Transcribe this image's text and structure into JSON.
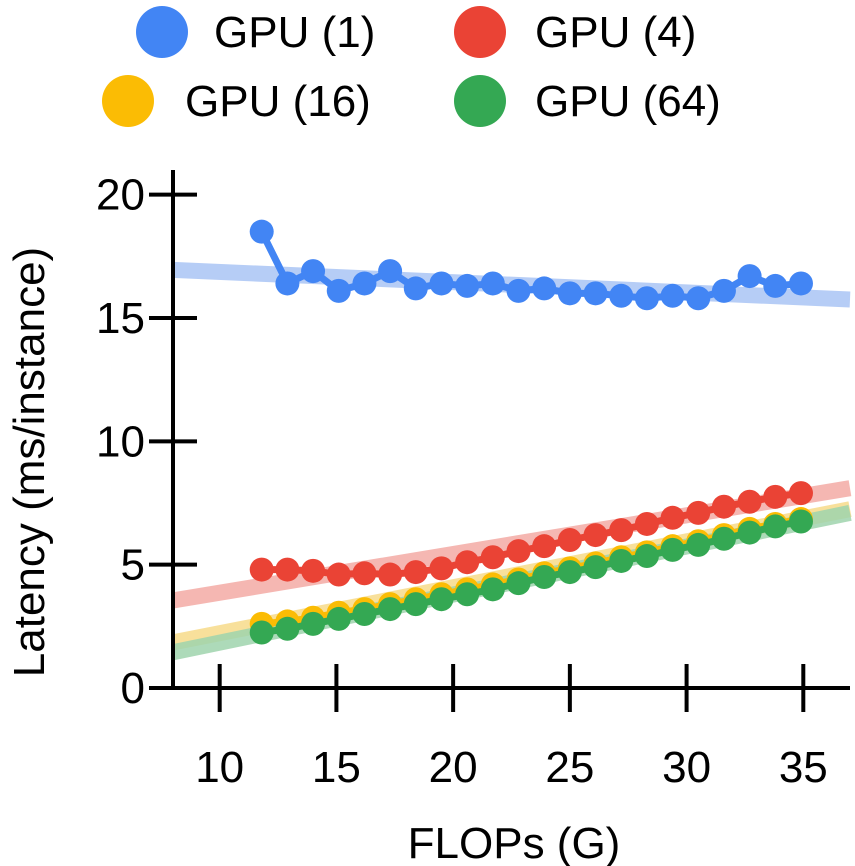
{
  "chart_data": {
    "type": "line",
    "title": "",
    "xlabel": "FLOPs (G)",
    "ylabel": "Latency (ms/instance)",
    "xlim": [
      8,
      37
    ],
    "ylim": [
      0,
      21
    ],
    "xticks": [
      10,
      15,
      20,
      25,
      30,
      35
    ],
    "yticks": [
      0,
      5,
      10,
      15,
      20
    ],
    "xtick_labels": [
      "10",
      "15",
      "20",
      "25",
      "30",
      "35"
    ],
    "ytick_labels": [
      "0",
      "5",
      "10",
      "15",
      "20"
    ],
    "grid": false,
    "legend_position": "top",
    "x": [
      11.8,
      12.9,
      14.0,
      15.1,
      16.2,
      17.3,
      18.4,
      19.5,
      20.6,
      21.7,
      22.8,
      23.9,
      25.0,
      26.1,
      27.2,
      28.3,
      29.4,
      30.5,
      31.6,
      32.7,
      33.8,
      34.9
    ],
    "series": [
      {
        "name": "GPU (1)",
        "color": "#4285F4",
        "trend_color": "#a9c4f5",
        "values": [
          18.5,
          16.4,
          16.9,
          16.1,
          16.4,
          16.9,
          16.2,
          16.4,
          16.3,
          16.4,
          16.1,
          16.2,
          16.0,
          16.0,
          15.9,
          15.8,
          15.9,
          15.8,
          16.1,
          16.7,
          16.3,
          16.4
        ],
        "trend": [
          [
            8.0,
            16.95
          ],
          [
            37.0,
            15.75
          ]
        ]
      },
      {
        "name": "GPU (4)",
        "color": "#EA4335",
        "trend_color": "#f3aaa4",
        "values": [
          4.8,
          4.8,
          4.75,
          4.6,
          4.65,
          4.6,
          4.7,
          4.85,
          5.1,
          5.3,
          5.55,
          5.75,
          6.0,
          6.2,
          6.4,
          6.65,
          6.9,
          7.1,
          7.35,
          7.55,
          7.75,
          7.9
        ],
        "trend": [
          [
            8.0,
            3.55
          ],
          [
            37.0,
            8.1
          ]
        ]
      },
      {
        "name": "GPU (16)",
        "color": "#FBBC04",
        "trend_color": "#f7da8a",
        "values": [
          2.6,
          2.7,
          2.85,
          3.05,
          3.2,
          3.4,
          3.6,
          3.8,
          4.0,
          4.2,
          4.4,
          4.65,
          4.85,
          5.05,
          5.3,
          5.5,
          5.75,
          5.95,
          6.2,
          6.45,
          6.65,
          6.85
        ],
        "trend": [
          [
            8.0,
            1.85
          ],
          [
            37.0,
            7.25
          ]
        ]
      },
      {
        "name": "GPU (64)",
        "color": "#34A853",
        "trend_color": "#9fd3ad",
        "values": [
          2.25,
          2.4,
          2.6,
          2.8,
          3.0,
          3.2,
          3.4,
          3.6,
          3.8,
          4.0,
          4.25,
          4.5,
          4.7,
          4.9,
          5.15,
          5.35,
          5.6,
          5.8,
          6.05,
          6.3,
          6.55,
          6.75
        ],
        "trend": [
          [
            8.0,
            1.45
          ],
          [
            37.0,
            7.1
          ]
        ]
      }
    ]
  }
}
